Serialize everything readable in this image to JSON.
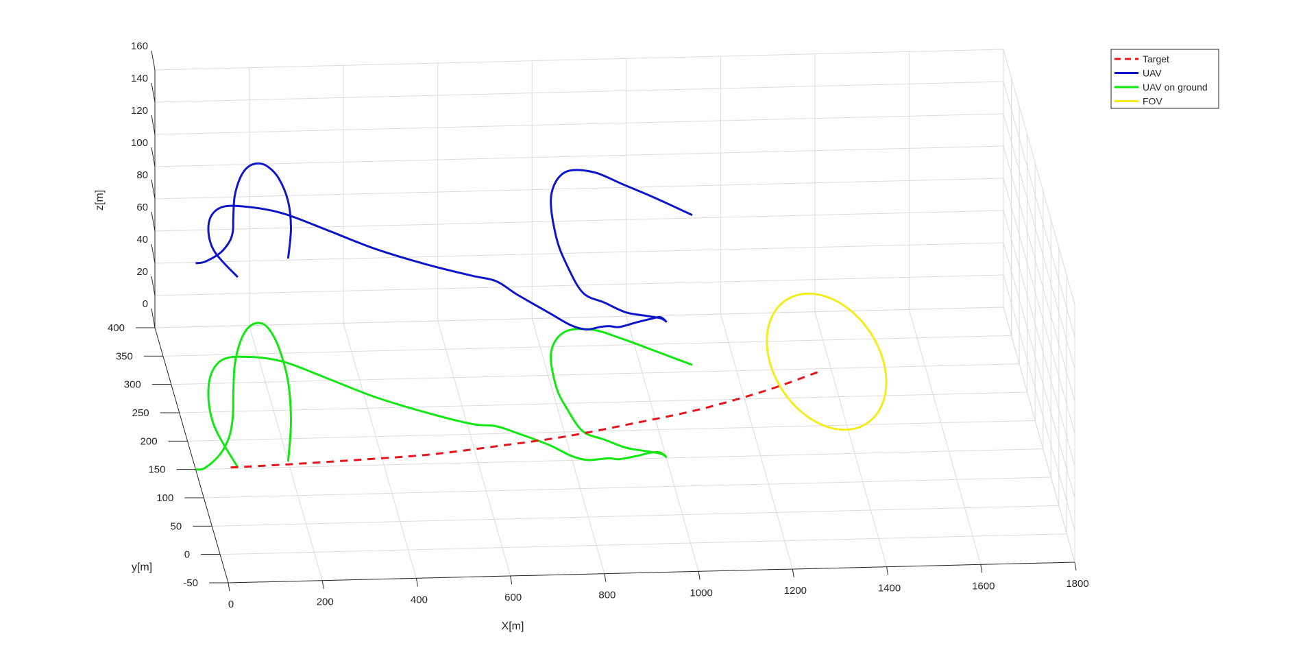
{
  "chart_data": {
    "type": "line",
    "view": "3d",
    "title": "",
    "xlabel": "X[m]",
    "ylabel": "y[m]",
    "zlabel": "z[m]",
    "xlim": [
      0,
      1800
    ],
    "ylim": [
      -50,
      400
    ],
    "zlim": [
      0,
      160
    ],
    "x_ticks": [
      "0",
      "200",
      "400",
      "600",
      "800",
      "1000",
      "1200",
      "1400",
      "1600",
      "1800"
    ],
    "y_ticks": [
      "-50",
      "0",
      "50",
      "100",
      "150",
      "200",
      "250",
      "300",
      "350",
      "400"
    ],
    "z_ticks": [
      "0",
      "20",
      "40",
      "60",
      "80",
      "100",
      "120",
      "140",
      "160"
    ],
    "grid": true,
    "legend_position": "top-right",
    "series": [
      {
        "name": "Target",
        "color": "#e8141c",
        "style": "dashed",
        "points": [
          [
            75,
            152
          ],
          [
            200,
            155
          ],
          [
            350,
            160
          ],
          [
            500,
            166
          ],
          [
            650,
            178
          ],
          [
            800,
            192
          ],
          [
            950,
            212
          ],
          [
            1100,
            234
          ],
          [
            1250,
            264
          ],
          [
            1370,
            294
          ]
        ]
      },
      {
        "name": "UAV",
        "color": "#0d16c9",
        "style": "solid",
        "points": [
          [
            0,
            150,
            128
          ],
          [
            20,
            152,
            128
          ],
          [
            60,
            175,
            125
          ],
          [
            90,
            205,
            121
          ],
          [
            110,
            240,
            115
          ],
          [
            125,
            280,
            110
          ],
          [
            145,
            330,
            105
          ],
          [
            170,
            370,
            102
          ],
          [
            200,
            400,
            100
          ],
          [
            220,
            404,
            99
          ],
          [
            240,
            395,
            100
          ],
          [
            250,
            360,
            105
          ],
          [
            248,
            300,
            112
          ],
          [
            230,
            230,
            120
          ],
          [
            200,
            160,
            126
          ],
          [
            170,
            120,
            130
          ],
          [
            150,
            80,
            133
          ],
          [
            135,
            40,
            136
          ],
          [
            130,
            0,
            138
          ],
          [
            128,
            -30,
            139
          ],
          [
            72,
            220,
            111
          ],
          [
            90,
            150,
            118
          ],
          [
            120,
            110,
            122
          ],
          [
            150,
            100,
            125
          ],
          [
            170,
            96,
            127
          ],
          [
            185,
            95,
            128
          ],
          [
            200,
            98,
            128
          ]
        ],
        "segments": [
          [
            [
              0,
              150,
              128
            ],
            [
              20,
              152,
              128
            ],
            [
              60,
              175,
              125
            ],
            [
              90,
              205,
              121
            ],
            [
              110,
              240,
              115
            ],
            [
              125,
              280,
              110
            ],
            [
              145,
              330,
              105
            ],
            [
              170,
              370,
              102
            ],
            [
              195,
              395,
              100
            ],
            [
              220,
              404,
              99
            ],
            [
              238,
              395,
              100
            ],
            [
              249,
              360,
              105
            ],
            [
              248,
              300,
              112
            ],
            [
              230,
              230,
              120
            ],
            [
              200,
              160,
              126
            ]
          ],
          [
            [
              90,
              152,
              118
            ],
            [
              65,
              230,
              108
            ],
            [
              80,
              300,
              100
            ],
            [
              120,
              340,
              95
            ],
            [
              180,
              345,
              93
            ],
            [
              250,
              335,
              92
            ],
            [
              330,
              305,
              92
            ],
            [
              420,
              270,
              92
            ],
            [
              520,
              240,
              92
            ],
            [
              610,
              218,
              92
            ],
            [
              660,
              213,
              90
            ],
            [
              700,
              200,
              86
            ],
            [
              760,
              178,
              82
            ],
            [
              800,
              158,
              81
            ],
            [
              830,
              150,
              81
            ],
            [
              860,
              151,
              82
            ],
            [
              880,
              152,
              82
            ],
            [
              900,
              150,
              82
            ],
            [
              940,
              155,
              83
            ],
            [
              970,
              160,
              83
            ],
            [
              990,
              160,
              84
            ],
            [
              1000,
              152,
              84
            ],
            [
              990,
              158,
              84
            ],
            [
              960,
              163,
              84
            ],
            [
              920,
              170,
              84
            ],
            [
              880,
              185,
              85
            ],
            [
              840,
              200,
              86
            ],
            [
              820,
              240,
              89
            ],
            [
              810,
              280,
              93
            ],
            [
              820,
              340,
              97
            ],
            [
              860,
              375,
              99
            ],
            [
              920,
              378,
              98
            ],
            [
              980,
              360,
              96
            ],
            [
              1040,
              338,
              95
            ],
            [
              1110,
              312,
              93
            ]
          ]
        ]
      },
      {
        "name": "UAV on ground",
        "color": "#11e811",
        "style": "solid"
      },
      {
        "name": "FOV",
        "color": "#f5ec1e",
        "style": "solid",
        "center": [
          1395,
          312
        ],
        "radius": 120
      }
    ]
  }
}
